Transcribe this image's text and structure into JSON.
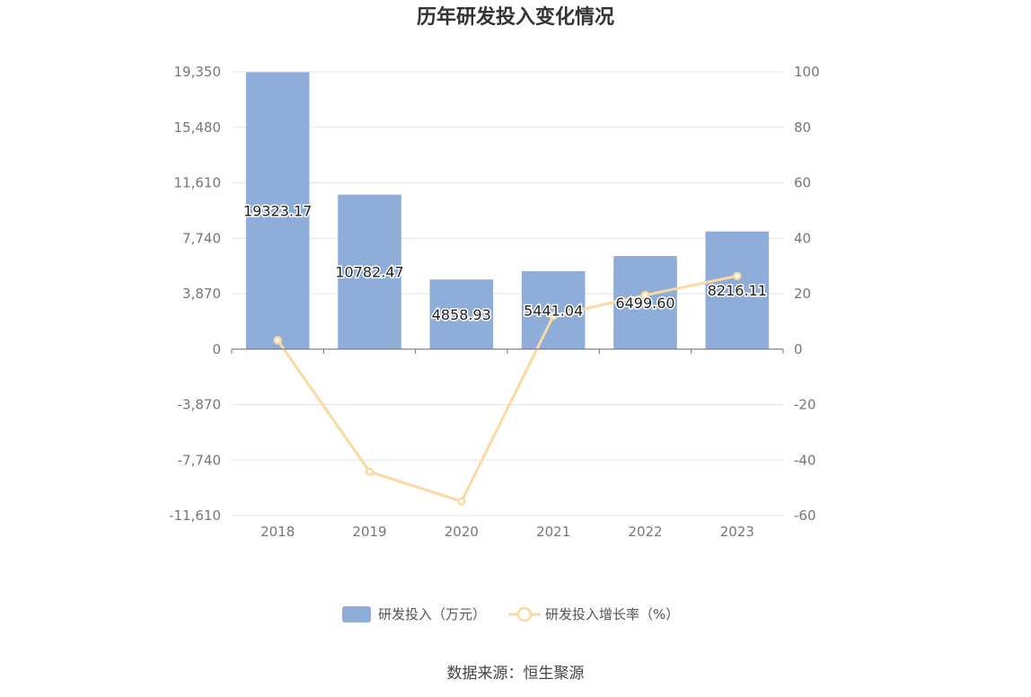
{
  "chart_data": {
    "type": "bar",
    "title": "历年研发投入变化情况",
    "categories": [
      "2018",
      "2019",
      "2020",
      "2021",
      "2022",
      "2023"
    ],
    "series": [
      {
        "name": "研发投入（万元）",
        "type": "bar",
        "axis": "left",
        "values": [
          19323.17,
          10782.47,
          4858.93,
          5441.04,
          6499.6,
          8216.11
        ],
        "color": "#8eadd9",
        "labels": [
          "19323.17",
          "10782.47",
          "4858.93",
          "5441.04",
          "6499.60",
          "8216.11"
        ]
      },
      {
        "name": "研发投入增长率（%）",
        "type": "line",
        "axis": "right",
        "values": [
          3.2,
          -44.2,
          -54.9,
          12.0,
          19.5,
          26.4
        ],
        "color": "#fcd9a0"
      }
    ],
    "y_left": {
      "ylim": [
        -11610,
        19350
      ],
      "ticks": [
        "19,350",
        "15,480",
        "11,610",
        "7,740",
        "3,870",
        "0",
        "-3,870",
        "-7,740",
        "-11,610"
      ]
    },
    "y_right": {
      "ylim": [
        -60,
        100
      ],
      "ticks": [
        "100",
        "80",
        "60",
        "40",
        "20",
        "0",
        "-20",
        "-40",
        "-60"
      ]
    },
    "grid": true,
    "legend": "bottom-center"
  },
  "source_text": "数据来源：恒生聚源"
}
